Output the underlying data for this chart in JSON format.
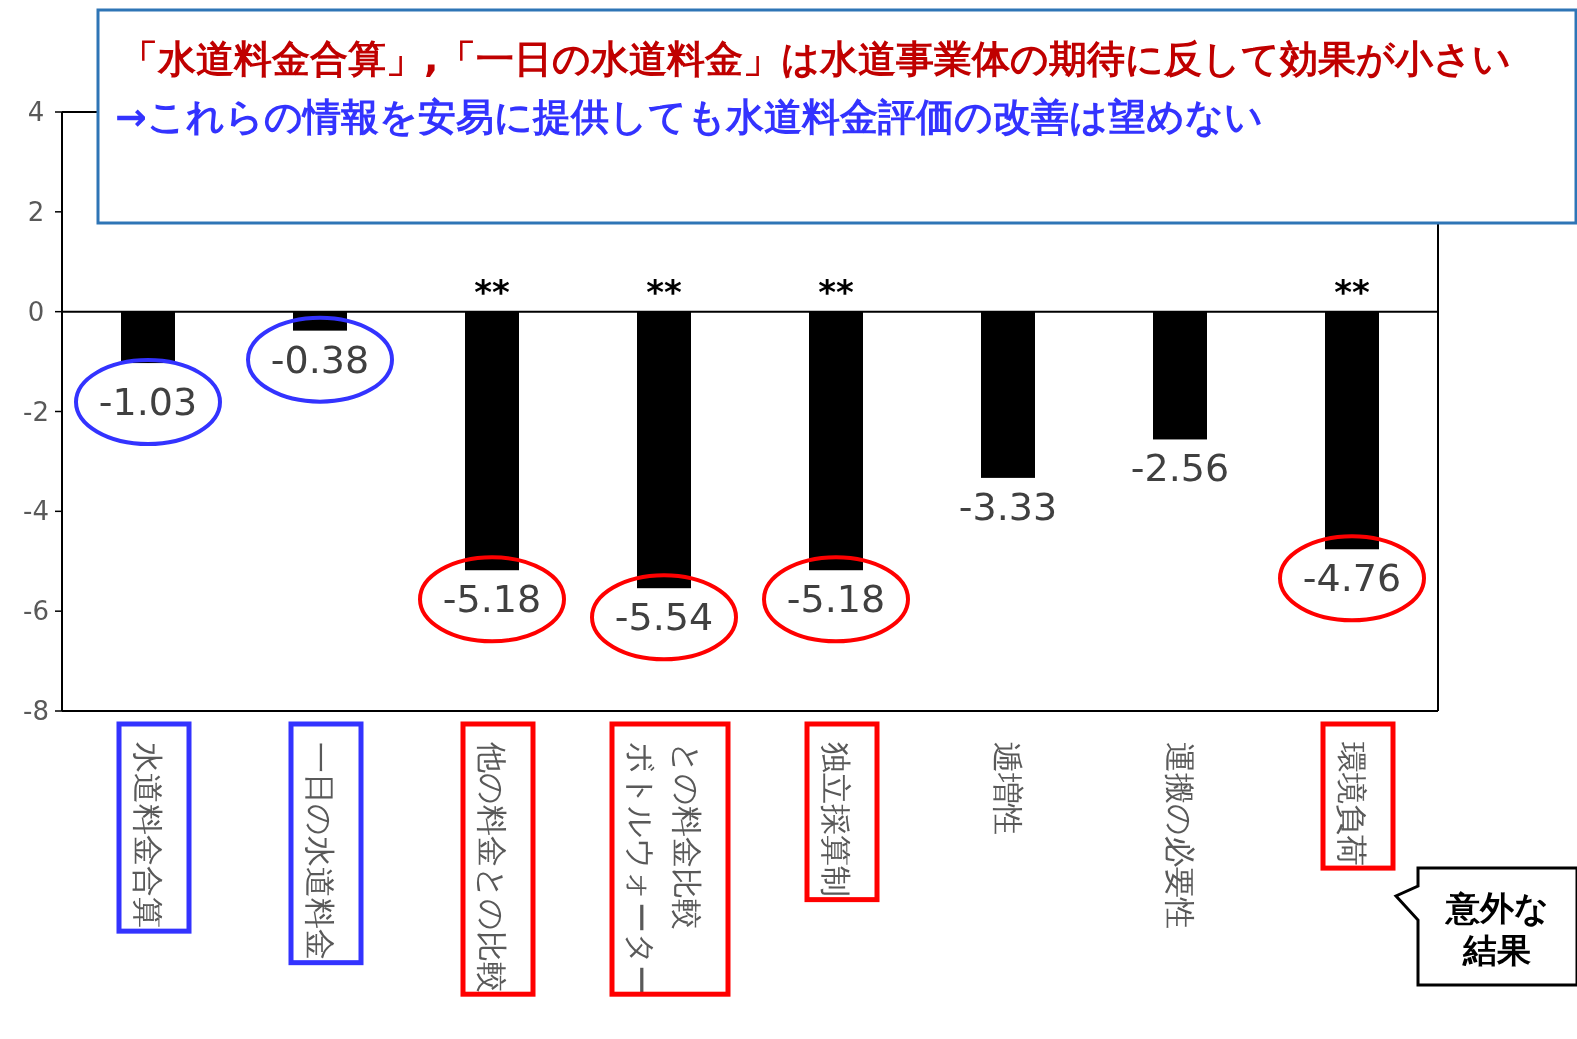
{
  "chart_data": {
    "type": "bar",
    "title": "「水道料金合算」,「一日の水道料金」は水道事業体の期待に反して効果が小さい",
    "subtitle": "→これらの情報を安易に提供しても水道料金評価の改善は望めない",
    "categories": [
      "水道料金合算",
      "一日の水道料金",
      "他の料金との比較",
      "ボトルウォーターとの料金比較",
      "独立採算制",
      "逓増性",
      "運搬の必要性",
      "環境負荷"
    ],
    "values": [
      -1.03,
      -0.38,
      -5.18,
      -5.54,
      -5.18,
      -3.33,
      -2.56,
      -4.76
    ],
    "color": "#000000",
    "ylim": [
      -8,
      4
    ],
    "yticks": [
      -8,
      -6,
      -4,
      -2,
      0,
      2,
      4
    ],
    "data_labels": true,
    "annotations": [
      {
        "text": "**",
        "x": "他の料金との比較",
        "y": 0
      },
      {
        "text": "**",
        "x": "ボトルウォーターとの料金比較",
        "y": 0
      },
      {
        "text": "**",
        "x": "独立採算制",
        "y": 0
      },
      {
        "text": "**",
        "x": "環境負荷",
        "y": 0
      },
      "意外な結果"
    ]
  }
}
